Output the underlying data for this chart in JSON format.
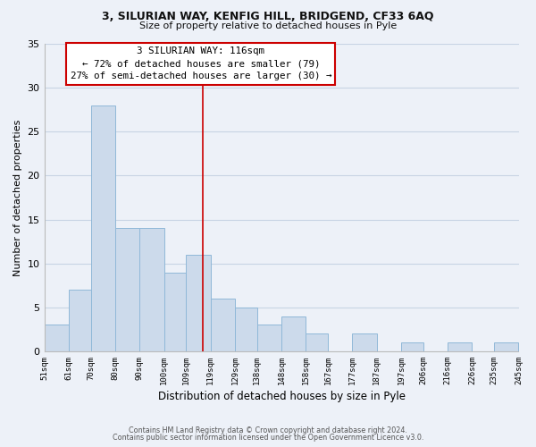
{
  "title_line1": "3, SILURIAN WAY, KENFIG HILL, BRIDGEND, CF33 6AQ",
  "title_line2": "Size of property relative to detached houses in Pyle",
  "xlabel": "Distribution of detached houses by size in Pyle",
  "ylabel": "Number of detached properties",
  "footer_line1": "Contains HM Land Registry data © Crown copyright and database right 2024.",
  "footer_line2": "Contains public sector information licensed under the Open Government Licence v3.0.",
  "bar_edges": [
    51,
    61,
    70,
    80,
    90,
    100,
    109,
    119,
    129,
    138,
    148,
    158,
    167,
    177,
    187,
    197,
    206,
    216,
    226,
    235,
    245
  ],
  "bar_heights": [
    3,
    7,
    28,
    14,
    14,
    9,
    11,
    6,
    5,
    3,
    4,
    2,
    0,
    2,
    0,
    1,
    0,
    1,
    0,
    1
  ],
  "tick_labels": [
    "51sqm",
    "61sqm",
    "70sqm",
    "80sqm",
    "90sqm",
    "100sqm",
    "109sqm",
    "119sqm",
    "129sqm",
    "138sqm",
    "148sqm",
    "158sqm",
    "167sqm",
    "177sqm",
    "187sqm",
    "197sqm",
    "206sqm",
    "216sqm",
    "226sqm",
    "235sqm",
    "245sqm"
  ],
  "bar_color": "#ccdaeb",
  "bar_edge_color": "#90b8d8",
  "vline_x": 116,
  "vline_color": "#cc0000",
  "annotation_title": "3 SILURIAN WAY: 116sqm",
  "annotation_line1": "← 72% of detached houses are smaller (79)",
  "annotation_line2": "27% of semi-detached houses are larger (30) →",
  "annotation_box_facecolor": "#ffffff",
  "annotation_box_edgecolor": "#cc0000",
  "ylim": [
    0,
    35
  ],
  "yticks": [
    0,
    5,
    10,
    15,
    20,
    25,
    30,
    35
  ],
  "grid_color": "#c8d4e4",
  "background_color": "#edf1f8"
}
